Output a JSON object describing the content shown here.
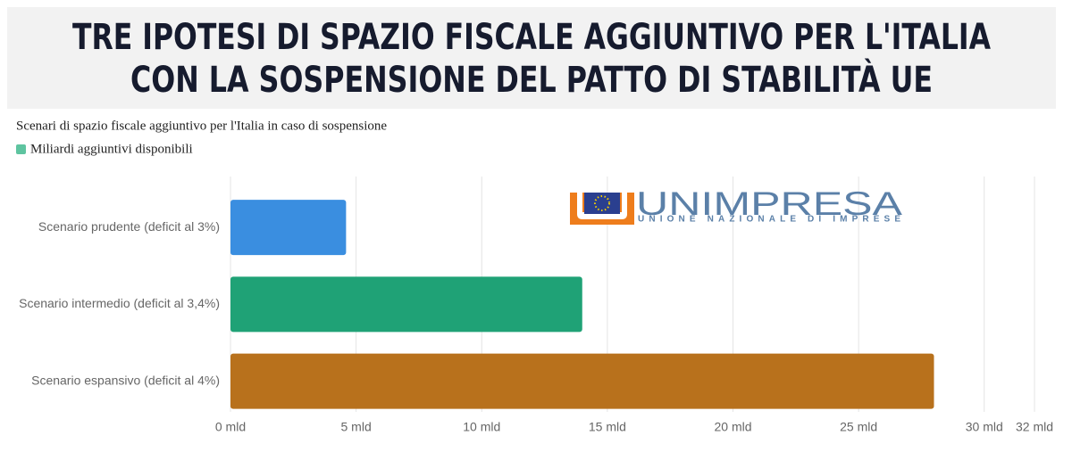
{
  "header": {
    "lines": [
      "TRE IPOTESI DI SPAZIO FISCALE AGGIUNTIVO PER L'ITALIA",
      "CON LA SOSPENSIONE DEL PATTO DI STABILITÀ UE"
    ]
  },
  "logo": {
    "name": "UNIMPRESA",
    "tagline": "UNIONE NAZIONALE DI IMPRESE"
  },
  "chart_data": {
    "type": "hbar",
    "title": "Scenari di spazio fiscale aggiuntivo per l'Italia in caso di sospensione",
    "categories": [
      "Scenario prudente (deficit al 3%)",
      "Scenario intermedio (deficit al 3,4%)",
      "Scenario espansivo (deficit al 4%)"
    ],
    "series": [
      {
        "name": "Miliardi aggiuntivi disponibili",
        "color": "#5ec4a0",
        "values": [
          4.6,
          14,
          28
        ],
        "colors": [
          "#3a8ee0",
          "#1fa276",
          "#b8711c"
        ]
      }
    ],
    "xlim": [
      0,
      32
    ],
    "xticks": [
      {
        "value": 0,
        "label": "0 mld"
      },
      {
        "value": 5,
        "label": "5 mld"
      },
      {
        "value": 10,
        "label": "10 mld"
      },
      {
        "value": 15,
        "label": "15 mld"
      },
      {
        "value": 20,
        "label": "20 mld"
      },
      {
        "value": 25,
        "label": "25 mld"
      },
      {
        "value": 30,
        "label": "30 mld"
      },
      {
        "value": 32,
        "label": "32 mld"
      }
    ],
    "grid": true
  }
}
